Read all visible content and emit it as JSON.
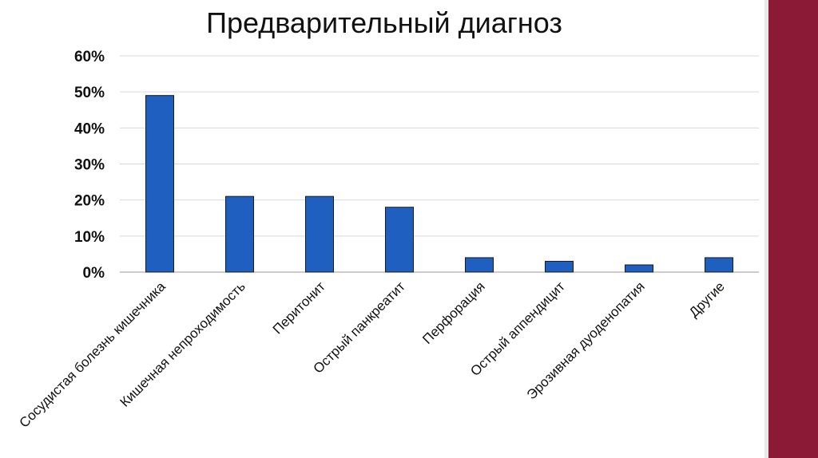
{
  "slide": {
    "accent_color": "#8b1a37"
  },
  "chart_data": {
    "type": "bar",
    "title": "Предварительный диагноз",
    "categories": [
      "Сосудистая болезнь кишечника",
      "Кишечная непроходимость",
      "Перитонит",
      "Острый панкреатит",
      "Перфорация",
      "Острый аппендицит",
      "Эрозивная дуоденопатия",
      "Другие"
    ],
    "values": [
      49,
      21,
      21,
      18,
      4,
      3,
      2,
      4
    ],
    "value_unit": "%",
    "ylim": [
      0,
      60
    ],
    "yticks": [
      "0%",
      "10%",
      "20%",
      "30%",
      "40%",
      "50%",
      "60%"
    ],
    "grid": true,
    "bar_color": "#1f5fbf",
    "legend": "none"
  }
}
